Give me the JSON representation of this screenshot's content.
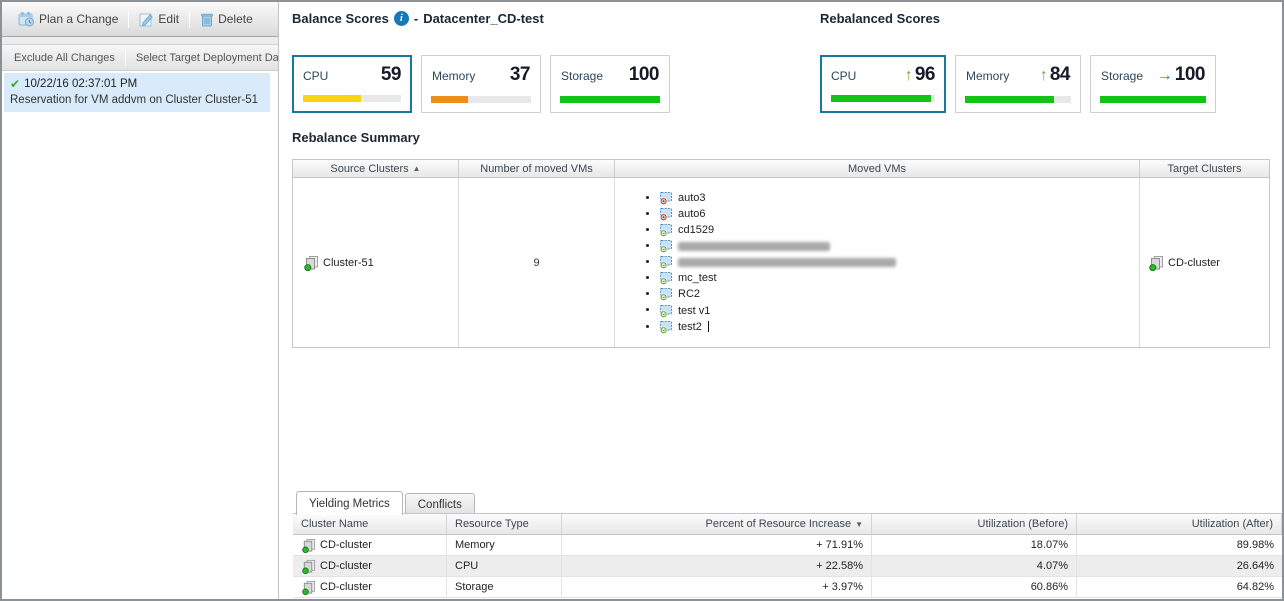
{
  "left_panel": {
    "toolbar": {
      "plan_change": "Plan a Change",
      "edit": "Edit",
      "delete": "Delete"
    },
    "actions": {
      "exclude_all": "Exclude All Changes",
      "select_target": "Select Target Deployment Da"
    },
    "selected_change": {
      "timestamp": "10/22/16 02:37:01 PM",
      "description": "Reservation for VM addvm on Cluster Cluster-51"
    }
  },
  "balance": {
    "title": "Balance Scores",
    "separator": "-",
    "datacenter": "Datacenter_CD-test",
    "cards": [
      {
        "label": "CPU",
        "value": "59",
        "pct": 59,
        "color": "#f7d709",
        "selected": true
      },
      {
        "label": "Memory",
        "value": "37",
        "pct": 37,
        "color": "#f08c1e",
        "selected": false
      },
      {
        "label": "Storage",
        "value": "100",
        "pct": 100,
        "color": "#13c413",
        "selected": false
      }
    ]
  },
  "rebalanced": {
    "title": "Rebalanced Scores",
    "bar_color": "#13c413",
    "trend_colors": {
      "up": "#6fa328",
      "flat": "#1e78c8"
    },
    "cards": [
      {
        "label": "CPU",
        "value": "96",
        "pct": 96,
        "trend": "up",
        "selected": true
      },
      {
        "label": "Memory",
        "value": "84",
        "pct": 84,
        "trend": "up",
        "selected": false
      },
      {
        "label": "Storage",
        "value": "100",
        "pct": 100,
        "trend": "flat",
        "selected": false
      }
    ]
  },
  "summary": {
    "title": "Rebalance Summary",
    "columns": [
      {
        "label": "Source Clusters",
        "sort": "asc"
      },
      {
        "label": "Number of moved VMs"
      },
      {
        "label": "Moved VMs"
      },
      {
        "label": "Target Clusters"
      }
    ],
    "row": {
      "source_cluster": "Cluster-51",
      "moved_count": "9",
      "target_cluster": "CD-cluster",
      "moved_vms": [
        {
          "name": "auto3",
          "state": "off"
        },
        {
          "name": "auto6",
          "state": "off"
        },
        {
          "name": "cd1529",
          "state": "on"
        },
        {
          "name": "",
          "state": "on",
          "redacted": true,
          "blur_width": 152
        },
        {
          "name": "",
          "state": "on",
          "redacted": true,
          "blur_width": 218
        },
        {
          "name": "mc_test",
          "state": "on"
        },
        {
          "name": "RC2",
          "state": "on"
        },
        {
          "name": "test v1",
          "state": "on"
        },
        {
          "name": "test2",
          "state": "on",
          "caret": true
        }
      ]
    }
  },
  "tabs": [
    {
      "label": "Yielding Metrics",
      "active": true
    },
    {
      "label": "Conflicts",
      "active": false
    }
  ],
  "metrics": {
    "columns": [
      {
        "label": "Cluster Name"
      },
      {
        "label": "Resource Type"
      },
      {
        "label": "Percent of Resource Increase",
        "sort": "desc",
        "align": "right"
      },
      {
        "label": "Utilization (Before)",
        "align": "right"
      },
      {
        "label": "Utilization (After)",
        "align": "right"
      }
    ],
    "rows": [
      {
        "cluster": "CD-cluster",
        "resource": "Memory",
        "increase": "+ 71.91%",
        "before": "18.07%",
        "after": "89.98%"
      },
      {
        "cluster": "CD-cluster",
        "resource": "CPU",
        "increase": "+ 22.58%",
        "before": "4.07%",
        "after": "26.64%"
      },
      {
        "cluster": "CD-cluster",
        "resource": "Storage",
        "increase": "+ 3.97%",
        "before": "60.86%",
        "after": "64.82%"
      }
    ]
  }
}
